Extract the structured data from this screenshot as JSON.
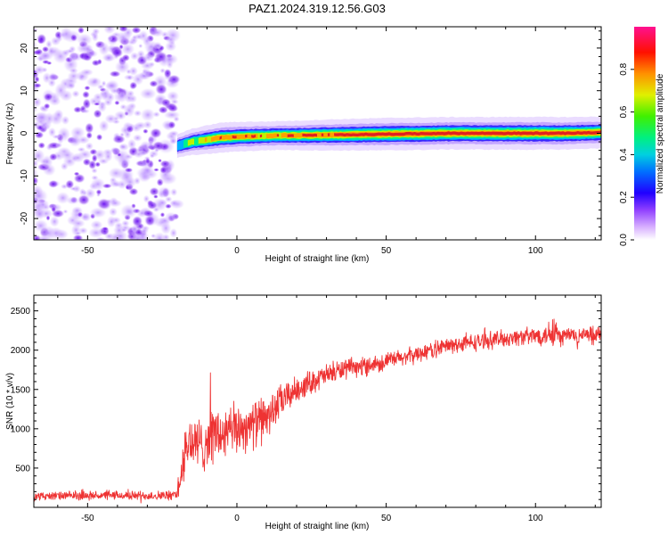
{
  "title": "PAZ1.2024.319.12.56.G03",
  "colors": {
    "snr_line": "#ee3333",
    "ridge_core": "#cc1f1f",
    "noise": "#7a2be0"
  },
  "chart_data": [
    {
      "type": "heatmap",
      "name": "spectrogram",
      "xlabel": "Height of straight line (km)",
      "ylabel": "Frequency (Hz)",
      "xlim": [
        -68,
        122
      ],
      "ylim": [
        -25,
        25
      ],
      "xticks": [
        -50,
        0,
        50,
        100
      ],
      "yticks": [
        -20,
        -10,
        0,
        10,
        20
      ],
      "colorbar": {
        "label": "Normalized spectral amplitude",
        "range": [
          0,
          1
        ],
        "ticks": [
          0.0,
          0.2,
          0.4,
          0.6,
          0.8
        ],
        "colormap": [
          "#ffffff",
          "#c080ff",
          "#7000ff",
          "#0000ff",
          "#00c0ff",
          "#00ff80",
          "#40ff00",
          "#ffff00",
          "#ff8000",
          "#ff0000",
          "#ff1080"
        ]
      },
      "noise_region_x": [
        -68,
        -20
      ],
      "ridge": {
        "x": [
          -20,
          -15,
          -10,
          -5,
          0,
          5,
          10,
          15,
          20,
          30,
          40,
          50,
          60,
          70,
          80,
          90,
          100,
          110,
          122
        ],
        "freq": [
          -3.0,
          -2.0,
          -1.5,
          -1.0,
          -0.8,
          -0.7,
          -0.6,
          -0.5,
          -0.5,
          -0.4,
          -0.3,
          -0.2,
          -0.1,
          0.0,
          0.0,
          0.0,
          0.0,
          0.0,
          0.2
        ],
        "amplitude": [
          0.35,
          0.55,
          0.7,
          0.8,
          0.75,
          0.75,
          0.7,
          0.72,
          0.75,
          0.85,
          0.9,
          0.95,
          0.95,
          0.95,
          0.95,
          0.97,
          0.98,
          0.95,
          0.9
        ]
      }
    },
    {
      "type": "line",
      "name": "snr",
      "xlabel": "Height of straight line (km)",
      "ylabel": "SNR (10 * v/v)",
      "xlim": [
        -68,
        122
      ],
      "ylim": [
        0,
        2700
      ],
      "xticks": [
        -50,
        0,
        50,
        100
      ],
      "yticks": [
        500,
        1000,
        1500,
        2000,
        2500
      ],
      "series": [
        {
          "x": [
            -68,
            -60,
            -50,
            -40,
            -30,
            -22,
            -20,
            -18,
            -16,
            -14,
            -12,
            -10,
            -8,
            -5,
            0,
            5,
            10,
            15,
            20,
            25,
            30,
            35,
            40,
            45,
            50,
            55,
            60,
            65,
            70,
            75,
            80,
            85,
            90,
            95,
            100,
            104,
            106,
            108,
            110,
            115,
            120,
            122
          ],
          "y": [
            140,
            145,
            150,
            150,
            150,
            150,
            170,
            550,
            850,
            800,
            780,
            850,
            950,
            900,
            1000,
            1050,
            1150,
            1350,
            1500,
            1600,
            1680,
            1750,
            1780,
            1820,
            1860,
            1900,
            1950,
            2000,
            2050,
            2080,
            2100,
            2130,
            2150,
            2170,
            2180,
            2200,
            2300,
            2150,
            2200,
            2180,
            2190,
            2200
          ],
          "noise_amplitude": [
            50,
            50,
            50,
            50,
            55,
            55,
            80,
            250,
            350,
            330,
            320,
            330,
            350,
            330,
            300,
            280,
            250,
            200,
            150,
            140,
            130,
            120,
            110,
            105,
            100,
            100,
            100,
            100,
            100,
            100,
            100,
            100,
            100,
            100,
            110,
            120,
            300,
            120,
            110,
            100,
            100,
            100
          ]
        }
      ]
    }
  ]
}
